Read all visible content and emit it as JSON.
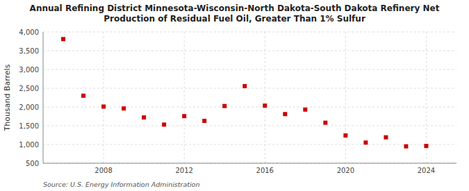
{
  "chart_data": {
    "type": "scatter",
    "title": "Annual Refining District Minnesota-Wisconsin-North Dakota-South Dakota Refinery Net",
    "subtitle": "Production of Residual Fuel Oil, Greater Than 1% Sulfur",
    "y_label": "Thousand Barrels",
    "annotations": [
      "Source: U.S. Energy Information Administration"
    ],
    "x": [
      2006,
      2007,
      2008,
      2009,
      2010,
      2011,
      2012,
      2013,
      2014,
      2015,
      2016,
      2017,
      2018,
      2019,
      2020,
      2021,
      2022,
      2023,
      2024
    ],
    "values": [
      3810,
      2300,
      2010,
      1960,
      1720,
      1530,
      1755,
      1630,
      2025,
      2555,
      2035,
      1810,
      1930,
      1580,
      1240,
      1050,
      1190,
      950,
      960
    ],
    "color": "#cc0000",
    "marker": "square",
    "xlim": [
      2005.0,
      2025.5
    ],
    "xticks": [
      2008,
      2012,
      2016,
      2020,
      2024
    ],
    "ylim": [
      500,
      4000
    ],
    "yticks": [
      500,
      {
        "value": 1000,
        "label": "1,000"
      },
      {
        "value": 1500,
        "label": "1,500"
      },
      {
        "value": 2000,
        "label": "2,000"
      },
      {
        "value": 2500,
        "label": "2,500"
      },
      {
        "value": 3000,
        "label": "3,000"
      },
      {
        "value": 3500,
        "label": "3,500"
      },
      {
        "value": 4000,
        "label": "4,000"
      }
    ],
    "grid": true
  }
}
